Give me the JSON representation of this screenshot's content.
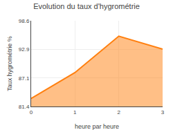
{
  "chart_data": {
    "type": "area",
    "title": "Evolution du taux d'hygrométrie",
    "xlabel": "heure par heure",
    "ylabel": "Taux hygrométrie %",
    "x": [
      0,
      1,
      2,
      3
    ],
    "values": [
      83.0,
      88.2,
      95.5,
      92.9
    ],
    "baseline": 81.4,
    "xlim": [
      0,
      3
    ],
    "xticks": [
      0,
      1,
      2,
      3
    ],
    "ylim": [
      81.4,
      98.6
    ],
    "yticks": [
      81.4,
      87.1,
      92.9,
      98.6
    ],
    "grid": true
  }
}
